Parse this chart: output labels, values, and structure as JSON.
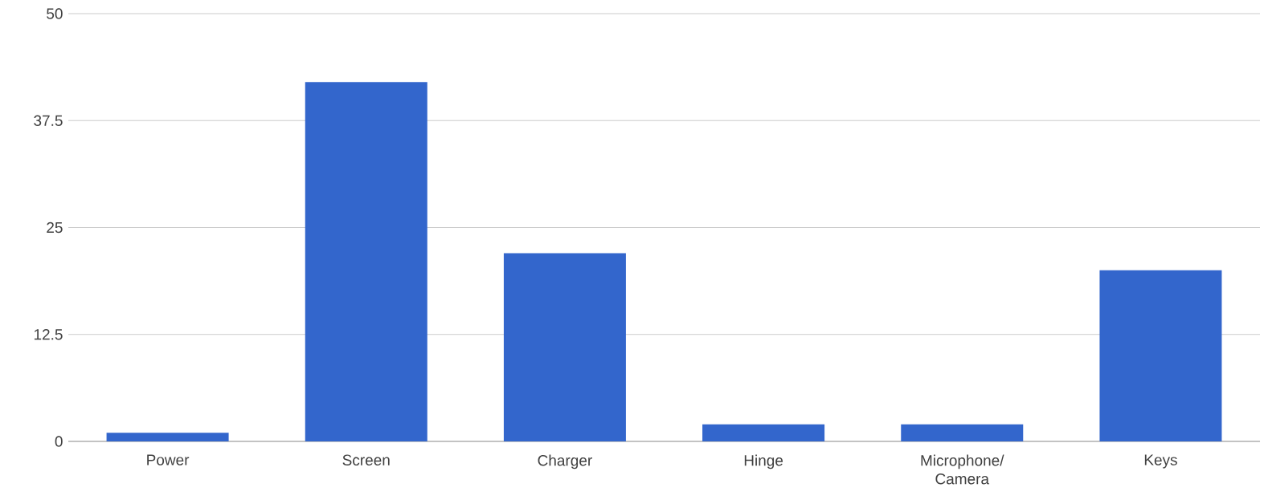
{
  "chart_data": {
    "type": "bar",
    "categories": [
      "Power",
      "Screen",
      "Charger",
      "Hinge",
      "Microphone/ Camera",
      "Keys"
    ],
    "values": [
      1,
      42,
      22,
      2,
      2,
      20
    ],
    "color": "#3366cc",
    "ylim": [
      0,
      50
    ],
    "yticks": [
      0,
      12.5,
      25,
      37.5,
      50
    ],
    "grid": "y"
  }
}
